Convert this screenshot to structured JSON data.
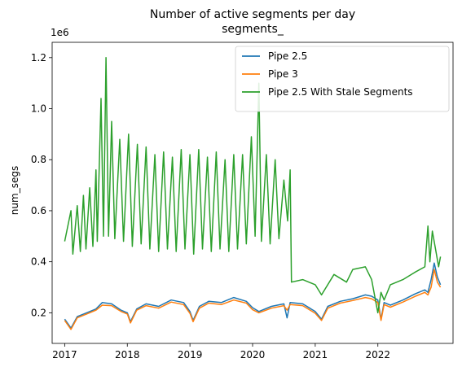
{
  "chart_data": {
    "type": "line",
    "title": "Number of active segments per day",
    "subtitle": "segments_",
    "xlabel": "",
    "ylabel": "num_segs",
    "y_offset_text": "1e6",
    "xlim": [
      2016.8,
      2023.2
    ],
    "ylim": [
      80000,
      1260000
    ],
    "x_ticks": [
      2017,
      2018,
      2019,
      2020,
      2021,
      2022
    ],
    "x_tick_labels": [
      "2017",
      "2018",
      "2019",
      "2020",
      "2021",
      "2022"
    ],
    "y_ticks": [
      200000,
      400000,
      600000,
      800000,
      1000000,
      1200000
    ],
    "y_tick_labels": [
      "0.2",
      "0.4",
      "0.6",
      "0.8",
      "1.0",
      "1.2"
    ],
    "grid": false,
    "legend_position": "top-right",
    "series": [
      {
        "name": "Pipe 2.5",
        "color": "#1f77b4",
        "x": [
          2017.0,
          2017.1,
          2017.2,
          2017.35,
          2017.5,
          2017.6,
          2017.75,
          2017.9,
          2018.0,
          2018.05,
          2018.15,
          2018.3,
          2018.5,
          2018.7,
          2018.9,
          2019.0,
          2019.05,
          2019.15,
          2019.3,
          2019.5,
          2019.7,
          2019.9,
          2020.0,
          2020.1,
          2020.3,
          2020.5,
          2020.55,
          2020.6,
          2020.8,
          2021.0,
          2021.1,
          2021.2,
          2021.4,
          2021.6,
          2021.8,
          2021.9,
          2022.0,
          2022.05,
          2022.1,
          2022.2,
          2022.4,
          2022.6,
          2022.75,
          2022.8,
          2022.85,
          2022.9,
          2022.95,
          2023.0
        ],
        "y": [
          175000,
          140000,
          185000,
          200000,
          215000,
          240000,
          235000,
          210000,
          200000,
          165000,
          215000,
          235000,
          225000,
          250000,
          240000,
          205000,
          170000,
          225000,
          245000,
          240000,
          260000,
          245000,
          220000,
          205000,
          225000,
          235000,
          180000,
          240000,
          235000,
          205000,
          175000,
          225000,
          245000,
          255000,
          270000,
          265000,
          250000,
          175000,
          240000,
          230000,
          250000,
          275000,
          290000,
          280000,
          330000,
          395000,
          340000,
          310000
        ]
      },
      {
        "name": "Pipe 3",
        "color": "#ff7f0e",
        "x": [
          2017.0,
          2017.1,
          2017.2,
          2017.35,
          2017.5,
          2017.6,
          2017.75,
          2017.9,
          2018.0,
          2018.05,
          2018.15,
          2018.3,
          2018.5,
          2018.7,
          2018.9,
          2019.0,
          2019.05,
          2019.15,
          2019.3,
          2019.5,
          2019.7,
          2019.9,
          2020.0,
          2020.1,
          2020.3,
          2020.5,
          2020.55,
          2020.6,
          2020.8,
          2021.0,
          2021.1,
          2021.2,
          2021.4,
          2021.6,
          2021.8,
          2021.9,
          2022.0,
          2022.05,
          2022.1,
          2022.2,
          2022.4,
          2022.6,
          2022.75,
          2022.8,
          2022.85,
          2022.9,
          2022.95,
          2023.0
        ],
        "y": [
          170000,
          135000,
          180000,
          195000,
          210000,
          230000,
          228000,
          205000,
          195000,
          160000,
          210000,
          228000,
          218000,
          242000,
          232000,
          198000,
          165000,
          218000,
          238000,
          232000,
          250000,
          238000,
          212000,
          200000,
          218000,
          228000,
          210000,
          232000,
          228000,
          198000,
          170000,
          218000,
          238000,
          248000,
          260000,
          255000,
          240000,
          170000,
          232000,
          222000,
          242000,
          265000,
          280000,
          270000,
          300000,
          370000,
          320000,
          300000
        ]
      },
      {
        "name": "Pipe 2.5 With Stale Segments",
        "color": "#2ca02c",
        "x": [
          2017.0,
          2017.1,
          2017.13,
          2017.2,
          2017.25,
          2017.3,
          2017.34,
          2017.4,
          2017.45,
          2017.5,
          2017.52,
          2017.58,
          2017.62,
          2017.66,
          2017.7,
          2017.75,
          2017.8,
          2017.88,
          2017.94,
          2018.02,
          2018.08,
          2018.16,
          2018.22,
          2018.3,
          2018.36,
          2018.44,
          2018.5,
          2018.58,
          2018.64,
          2018.72,
          2018.78,
          2018.86,
          2018.92,
          2019.0,
          2019.06,
          2019.14,
          2019.2,
          2019.28,
          2019.34,
          2019.42,
          2019.48,
          2019.56,
          2019.62,
          2019.7,
          2019.76,
          2019.84,
          2019.9,
          2019.98,
          2020.04,
          2020.1,
          2020.14,
          2020.22,
          2020.28,
          2020.36,
          2020.42,
          2020.5,
          2020.56,
          2020.6,
          2020.62,
          2020.8,
          2021.0,
          2021.1,
          2021.3,
          2021.5,
          2021.6,
          2021.8,
          2021.9,
          2022.0,
          2022.05,
          2022.1,
          2022.2,
          2022.4,
          2022.6,
          2022.75,
          2022.8,
          2022.83,
          2022.87,
          2022.92,
          2022.97,
          2023.0
        ],
        "y": [
          480000,
          600000,
          430000,
          620000,
          440000,
          660000,
          450000,
          690000,
          460000,
          760000,
          480000,
          1040000,
          500000,
          1200000,
          500000,
          950000,
          490000,
          880000,
          480000,
          900000,
          460000,
          860000,
          470000,
          850000,
          450000,
          820000,
          440000,
          830000,
          450000,
          810000,
          440000,
          840000,
          450000,
          820000,
          430000,
          840000,
          450000,
          810000,
          440000,
          830000,
          450000,
          800000,
          440000,
          820000,
          450000,
          820000,
          470000,
          890000,
          500000,
          1100000,
          480000,
          820000,
          470000,
          800000,
          490000,
          720000,
          560000,
          760000,
          320000,
          330000,
          310000,
          270000,
          350000,
          320000,
          370000,
          380000,
          330000,
          200000,
          280000,
          250000,
          310000,
          330000,
          360000,
          380000,
          540000,
          400000,
          520000,
          450000,
          380000,
          420000
        ]
      }
    ]
  }
}
